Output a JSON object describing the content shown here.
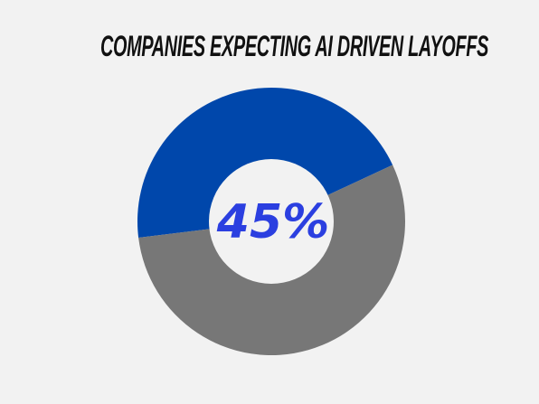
{
  "chart_data": {
    "type": "pie",
    "title": "COMPANIES EXPECTING AI DRIVEN LAYOFFS",
    "center_label": "45%",
    "slices": [
      {
        "value": 45,
        "color": "#0047ab"
      },
      {
        "value": 55,
        "color": "#777777"
      }
    ],
    "donut": true
  },
  "colors": {
    "background": "#f2f2f2",
    "hole": "#f2f2f2",
    "center_label": "#2b3fe0",
    "title": "#111111"
  }
}
